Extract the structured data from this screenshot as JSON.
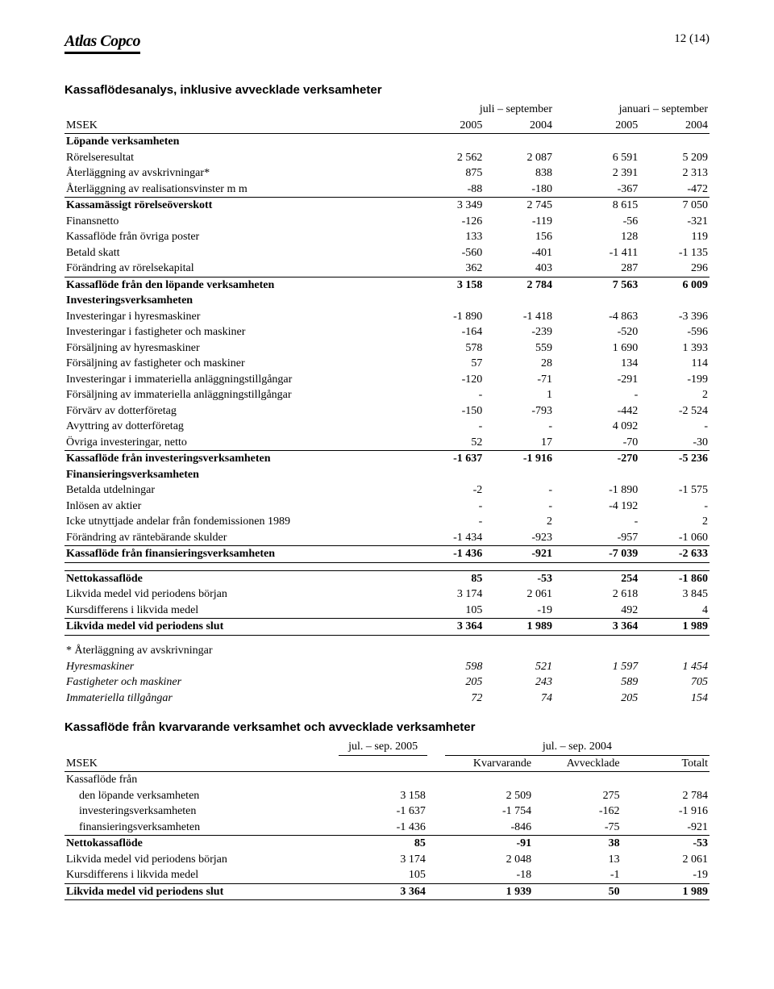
{
  "page_number": "12 (14)",
  "logo_text": "Atlas Copco",
  "table1": {
    "title": "Kassaflödesanalys, inklusive avvecklade verksamheter",
    "group_headers": [
      "juli – september",
      "januari – september"
    ],
    "msek": "MSEK",
    "years": [
      "2005",
      "2004",
      "2005",
      "2004"
    ],
    "sections": [
      {
        "label": "Löpande verksamheten",
        "type": "bold-header"
      },
      {
        "label": "Rörelseresultat",
        "vals": [
          "2 562",
          "2 087",
          "6 591",
          "5 209"
        ]
      },
      {
        "label": "Återläggning av avskrivningar*",
        "vals": [
          "875",
          "838",
          "2 391",
          "2 313"
        ]
      },
      {
        "label": "Återläggning av realisationsvinster m m",
        "vals": [
          "-88",
          "-180",
          "-367",
          "-472"
        ]
      },
      {
        "label": "Kassamässigt rörelseöverskott",
        "vals": [
          "3 349",
          "2 745",
          "8 615",
          "7 050"
        ],
        "bold_label": true,
        "rule_above": true
      },
      {
        "label": "Finansnetto",
        "vals": [
          "-126",
          "-119",
          "-56",
          "-321"
        ]
      },
      {
        "label": "Kassaflöde från övriga poster",
        "vals": [
          "133",
          "156",
          "128",
          "119"
        ]
      },
      {
        "label": "Betald skatt",
        "vals": [
          "-560",
          "-401",
          "-1 411",
          "-1 135"
        ]
      },
      {
        "label": "Förändring av rörelsekapital",
        "vals": [
          "362",
          "403",
          "287",
          "296"
        ]
      },
      {
        "label": "Kassaflöde från den löpande verksamheten",
        "vals": [
          "3 158",
          "2 784",
          "7 563",
          "6 009"
        ],
        "bold_row": true,
        "rule_above": true
      },
      {
        "label": "Investeringsverksamheten",
        "type": "bold-header"
      },
      {
        "label": "Investeringar i hyresmaskiner",
        "vals": [
          "-1 890",
          "-1 418",
          "-4 863",
          "-3 396"
        ]
      },
      {
        "label": "Investeringar i fastigheter och maskiner",
        "vals": [
          "-164",
          "-239",
          "-520",
          "-596"
        ]
      },
      {
        "label": "Försäljning av hyresmaskiner",
        "vals": [
          "578",
          "559",
          "1 690",
          "1 393"
        ]
      },
      {
        "label": "Försäljning av fastigheter och maskiner",
        "vals": [
          "57",
          "28",
          "134",
          "114"
        ]
      },
      {
        "label": "Investeringar i immateriella anläggningstillgångar",
        "vals": [
          "-120",
          "-71",
          "-291",
          "-199"
        ]
      },
      {
        "label": "Försäljning av immateriella anläggningstillgångar",
        "vals": [
          "-",
          "1",
          "-",
          "2"
        ]
      },
      {
        "label": "Förvärv av dotterföretag",
        "vals": [
          "-150",
          "-793",
          "-442",
          "-2 524"
        ]
      },
      {
        "label": "Avyttring av dotterföretag",
        "vals": [
          "-",
          "-",
          "4 092",
          "-"
        ]
      },
      {
        "label": "Övriga investeringar, netto",
        "vals": [
          "52",
          "17",
          "-70",
          "-30"
        ]
      },
      {
        "label": "Kassaflöde från investeringsverksamheten",
        "vals": [
          "-1 637",
          "-1 916",
          "-270",
          "-5 236"
        ],
        "bold_row": true,
        "rule_above": true
      },
      {
        "label": "Finansieringsverksamheten",
        "type": "bold-header"
      },
      {
        "label": "Betalda utdelningar",
        "vals": [
          "-2",
          "-",
          "-1 890",
          "-1 575"
        ]
      },
      {
        "label": "Inlösen av aktier",
        "vals": [
          "-",
          "-",
          "-4 192",
          "-"
        ]
      },
      {
        "label": "Icke utnyttjade andelar från fondemissionen 1989",
        "vals": [
          "-",
          "2",
          "-",
          "2"
        ]
      },
      {
        "label": "Förändring av räntebärande skulder",
        "vals": [
          "-1 434",
          "-923",
          "-957",
          "-1 060"
        ]
      },
      {
        "label": "Kassaflöde från finansieringsverksamheten",
        "vals": [
          "-1 436",
          "-921",
          "-7 039",
          "-2 633"
        ],
        "bold_row": true,
        "rule_above": true,
        "rule_below": true
      },
      {
        "type": "gap"
      },
      {
        "label": "Nettokassaflöde",
        "vals": [
          "85",
          "-53",
          "254",
          "-1 860"
        ],
        "bold_row": true,
        "rule_above": true
      },
      {
        "label": "Likvida medel vid periodens början",
        "vals": [
          "3 174",
          "2 061",
          "2 618",
          "3 845"
        ]
      },
      {
        "label": "Kursdifferens i likvida medel",
        "vals": [
          "105",
          "-19",
          "492",
          "4"
        ]
      },
      {
        "label": "Likvida medel vid periodens slut",
        "vals": [
          "3 364",
          "1 989",
          "3 364",
          "1 989"
        ],
        "bold_row": true,
        "rule_above": true,
        "rule_below": true
      },
      {
        "type": "gap"
      },
      {
        "label": "* Återläggning av avskrivningar"
      },
      {
        "label": "Hyresmaskiner",
        "vals": [
          "598",
          "521",
          "1 597",
          "1 454"
        ],
        "italic_row": true
      },
      {
        "label": "Fastigheter och maskiner",
        "vals": [
          "205",
          "243",
          "589",
          "705"
        ],
        "italic_row": true
      },
      {
        "label": "Immateriella tillgångar",
        "vals": [
          "72",
          "74",
          "205",
          "154"
        ],
        "italic_row": true
      }
    ]
  },
  "table2": {
    "title": "Kassaflöde från kvarvarande verksamhet och avvecklade verksamheter",
    "group_headers": [
      "jul. – sep.  2005",
      "jul. – sep.  2004"
    ],
    "msek": "MSEK",
    "subheaders": [
      "",
      "Kvarvarande",
      "Avvecklade",
      "Totalt"
    ],
    "rows": [
      {
        "label": "Kassaflöde från"
      },
      {
        "label": "den löpande verksamheten",
        "indent": true,
        "vals": [
          "3 158",
          "2 509",
          "275",
          "2 784"
        ]
      },
      {
        "label": "investeringsverksamheten",
        "indent": true,
        "vals": [
          "-1 637",
          "-1 754",
          "-162",
          "-1 916"
        ]
      },
      {
        "label": "finansieringsverksamheten",
        "indent": true,
        "vals": [
          "-1 436",
          "-846",
          "-75",
          "-921"
        ]
      },
      {
        "label": "Nettokassaflöde",
        "vals": [
          "85",
          "-91",
          "38",
          "-53"
        ],
        "bold_row": true,
        "rule_above": true
      },
      {
        "label": "Likvida medel vid periodens början",
        "vals": [
          "3 174",
          "2 048",
          "13",
          "2 061"
        ]
      },
      {
        "label": "Kursdifferens i likvida medel",
        "vals": [
          "105",
          "-18",
          "-1",
          "-19"
        ]
      },
      {
        "label": "Likvida medel vid periodens slut",
        "vals": [
          "3 364",
          "1 939",
          "50",
          "1 989"
        ],
        "bold_row": true,
        "rule_above": true,
        "rule_below": true
      }
    ]
  }
}
